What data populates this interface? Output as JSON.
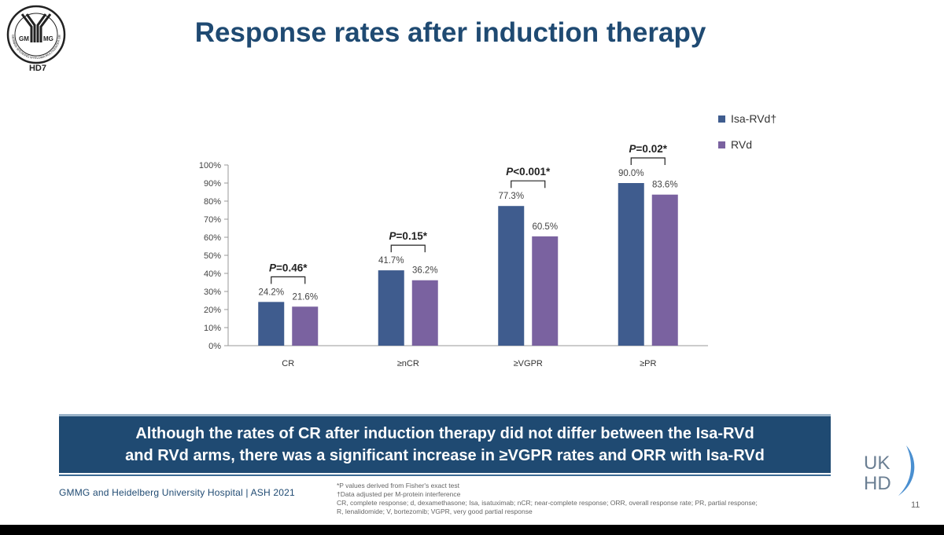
{
  "logo": {
    "left_text": "GM",
    "right_text": "MG",
    "ring_text": "GERMAN-SPEAKING MYELOMA MULTICENTER GROUP",
    "label": "HD7"
  },
  "title": "Response rates after induction therapy",
  "colors": {
    "isa": "#3f5c8e",
    "rvd": "#7a62a0",
    "title": "#1f4a72",
    "banner": "#1f4a72"
  },
  "chart_data": {
    "type": "bar",
    "categories": [
      "CR",
      "≥nCR",
      "≥VGPR",
      "≥PR"
    ],
    "series": [
      {
        "name": "Isa-RVd†",
        "values": [
          24.2,
          41.7,
          77.3,
          90.0
        ],
        "labels": [
          "24.2%",
          "41.7%",
          "77.3%",
          "90.0%"
        ]
      },
      {
        "name": "RVd",
        "values": [
          21.6,
          36.2,
          60.5,
          83.6
        ],
        "labels": [
          "21.6%",
          "36.2%",
          "60.5%",
          "83.6%"
        ]
      }
    ],
    "pvalues": [
      {
        "p": "P",
        "rest": "=0.46*"
      },
      {
        "p": "P",
        "rest": "=0.15*"
      },
      {
        "p": "P",
        "rest": "<0.001*"
      },
      {
        "p": "P",
        "rest": "=0.02*"
      }
    ],
    "yticks": [
      "0%",
      "10%",
      "20%",
      "30%",
      "40%",
      "50%",
      "60%",
      "70%",
      "80%",
      "90%",
      "100%"
    ],
    "ylim": [
      0,
      100
    ],
    "legend_position": "top-right"
  },
  "banner": {
    "line1": "Although the rates of CR after induction therapy did not differ between the Isa-RVd",
    "line2": "and RVd arms, there was a significant increase in ≥VGPR rates and ORR with Isa-RVd"
  },
  "source": "GMMG and Heidelberg University Hospital | ASH 2021",
  "footnotes": [
    "*P values derived from Fisher's exact test",
    "†Data adjusted per M-protein interference",
    "CR, complete response; d, dexamethasone; Isa, isatuximab; nCR; near-complete response; ORR, overall response rate; PR, partial response;",
    "R, lenalidomide; V, bortezomib; VGPR, very good partial response"
  ],
  "uk_logo": {
    "line1": "UK",
    "line2": "HD"
  },
  "page_number": "11"
}
